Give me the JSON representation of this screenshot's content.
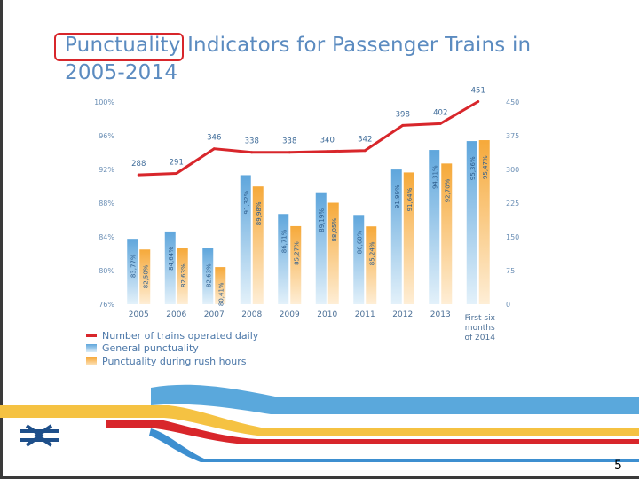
{
  "slide": {
    "title": "Punctuality Indicators for Passenger Trains in 2005-2014",
    "page_number": "5"
  },
  "colors": {
    "title": "#5b8bc0",
    "line": "#d8262b",
    "general_bar": "#5fa6dc",
    "rush_bar": "#f6a93a"
  },
  "chart_data": {
    "type": "bar",
    "title": "Punctuality Indicators for Passenger Trains in 2005-2014",
    "categories": [
      "2005",
      "2006",
      "2007",
      "2008",
      "2009",
      "2010",
      "2011",
      "2012",
      "2013",
      "First six months of 2014"
    ],
    "series": [
      {
        "name": "General punctuality",
        "type": "bar",
        "axis": "left",
        "values": [
          83.77,
          84.64,
          82.63,
          91.32,
          86.71,
          89.19,
          86.6,
          91.99,
          94.31,
          95.36
        ],
        "labels": [
          "83,77%",
          "84,64%",
          "82,63%",
          "91,32%",
          "86,71%",
          "89,19%",
          "86,60%",
          "91,99%",
          "94,31%",
          "95,36%"
        ]
      },
      {
        "name": "Punctuality during rush hours",
        "type": "bar",
        "axis": "left",
        "values": [
          82.5,
          82.63,
          80.41,
          89.98,
          85.27,
          88.05,
          85.24,
          91.64,
          92.7,
          95.47
        ],
        "labels": [
          "82,50%",
          "82,63%",
          "80,41%",
          "89,98%",
          "85,27%",
          "88,05%",
          "85,24%",
          "91,64%",
          "92,70%",
          "95,47%"
        ]
      },
      {
        "name": "Number of trains operated daily",
        "type": "line",
        "axis": "right",
        "values": [
          288,
          291,
          346,
          338,
          338,
          340,
          342,
          398,
          402,
          451
        ],
        "labels": [
          "288",
          "291",
          "346",
          "338",
          "338",
          "340",
          "342",
          "398",
          "402",
          "451"
        ]
      }
    ],
    "y_left": {
      "min": 76,
      "max": 100,
      "ticks": [
        "76%",
        "80%",
        "84%",
        "88%",
        "92%",
        "96%",
        "100%"
      ]
    },
    "y_right": {
      "min": 0,
      "max": 450,
      "ticks": [
        "0",
        "75",
        "150",
        "225",
        "300",
        "375",
        "450"
      ]
    },
    "legend": {
      "position": "bottom-left",
      "items": [
        "Number of trains operated daily",
        "General punctuality",
        "Punctuality during rush hours"
      ]
    }
  }
}
